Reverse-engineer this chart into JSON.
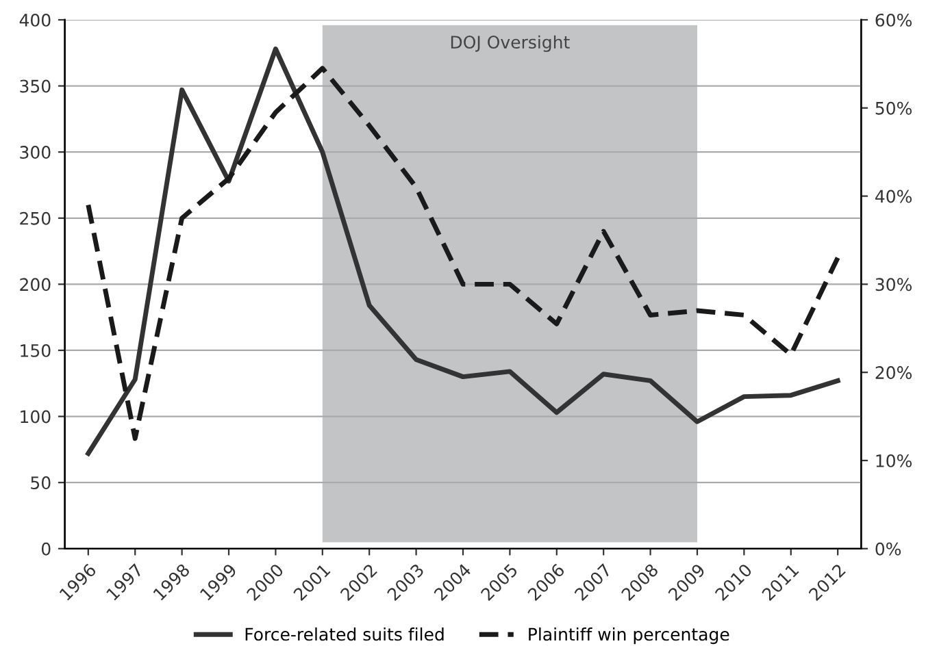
{
  "chart_data": {
    "type": "line",
    "categories": [
      "1996",
      "1997",
      "1998",
      "1999",
      "2000",
      "2001",
      "2002",
      "2003",
      "2004",
      "2005",
      "2006",
      "2007",
      "2008",
      "2009",
      "2010",
      "2011",
      "2012"
    ],
    "series": [
      {
        "name": "Force-related suits filed",
        "color": "#333333",
        "line_style": "solid",
        "values": [
          72,
          128,
          347,
          278,
          378,
          300,
          184,
          143,
          130,
          134,
          103,
          132,
          127,
          96,
          115,
          116,
          127
        ]
      },
      {
        "name": "Plaintiff win percentage",
        "color": "#1a1a1a",
        "line_style": "dashed",
        "axis": "y2",
        "values": [
          39,
          12.5,
          37.5,
          42,
          49.5,
          54.5,
          48,
          41,
          30,
          30,
          25.5,
          36,
          26.5,
          27,
          26.5,
          22,
          33
        ]
      }
    ],
    "ylim": [
      0,
      400
    ],
    "yticks": [
      0,
      50,
      100,
      150,
      200,
      250,
      300,
      350,
      400
    ],
    "y2lim": [
      0,
      60
    ],
    "y2ticks": [
      {
        "value": 0,
        "label": "0%"
      },
      {
        "value": 10,
        "label": "10%"
      },
      {
        "value": 20,
        "label": "20%"
      },
      {
        "value": 30,
        "label": "30%"
      },
      {
        "value": 40,
        "label": "40%"
      },
      {
        "value": 50,
        "label": "50%"
      },
      {
        "value": 60,
        "label": "60%"
      }
    ],
    "bands": [
      {
        "axis": "x",
        "from": "2001",
        "to": "2009",
        "label": "DOJ Oversight",
        "color": "#c3c4c6"
      }
    ],
    "grid": "y",
    "legend": "bottom",
    "marker": "none"
  }
}
